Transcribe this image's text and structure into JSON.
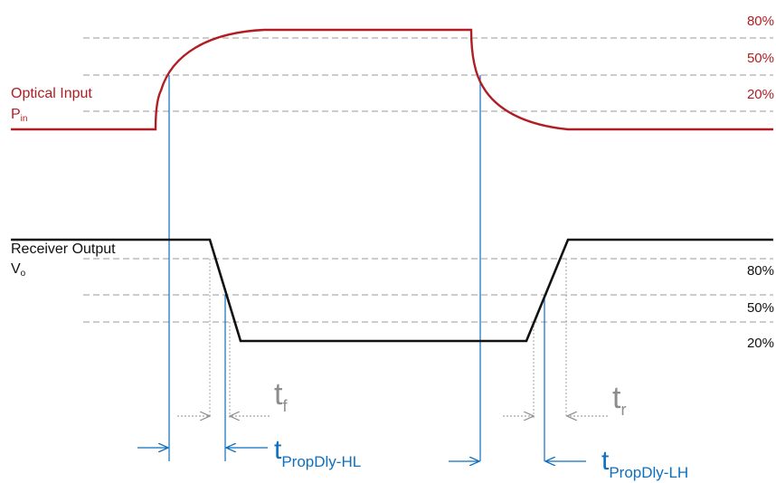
{
  "optical_input": {
    "label": "Optical Input",
    "symbol": "P",
    "symbol_sub": "in",
    "levels": [
      "80%",
      "50%",
      "20%"
    ]
  },
  "receiver_output": {
    "label": "Receiver Output",
    "symbol": "V",
    "symbol_sub": "o",
    "levels": [
      "80%",
      "50%",
      "20%"
    ]
  },
  "timing": {
    "fall": {
      "symbol": "t",
      "sub": "f"
    },
    "rise": {
      "symbol": "t",
      "sub": "r"
    },
    "prop_delay_hl": {
      "symbol": "t",
      "sub": "PropDly-HL"
    },
    "prop_delay_lh": {
      "symbol": "t",
      "sub": "PropDly-LH"
    }
  },
  "colors": {
    "optical_trace": "#b01e23",
    "output_trace": "#111111",
    "guide": "#9a9a9a",
    "delay": "#0e6fbf",
    "transition": "#8c8c8c"
  }
}
